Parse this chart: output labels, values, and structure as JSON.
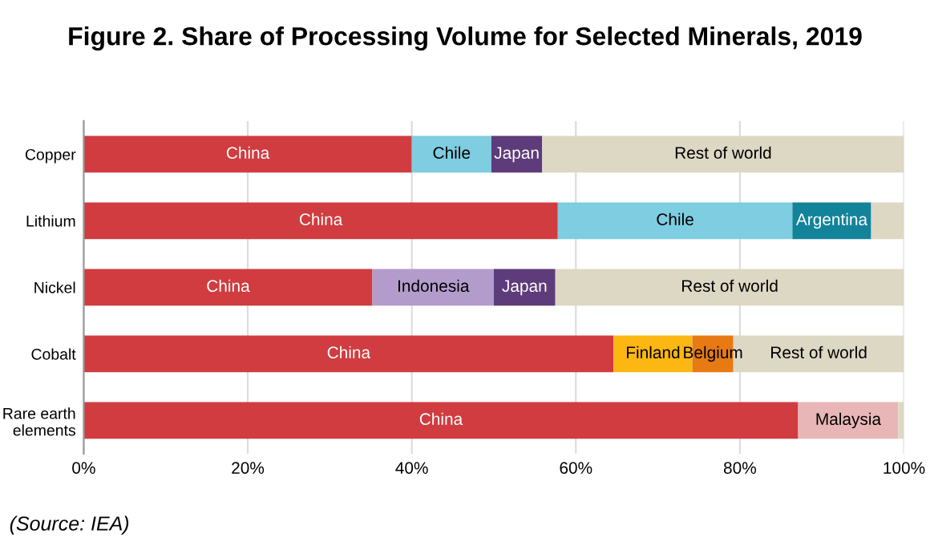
{
  "chart_data": {
    "type": "bar",
    "orientation": "horizontal",
    "stacked": true,
    "title": "Figure 2. Share of Processing Volume for Selected Minerals, 2019",
    "categories": [
      "Copper",
      "Lithium",
      "Nickel",
      "Cobalt",
      "Rare earth\nelements"
    ],
    "series": [
      {
        "colors": [
          "#d03c40",
          "#d03c40",
          "#d03c40",
          "#d03c40",
          "#d03c40"
        ],
        "values": [
          40.0,
          57.8,
          35.2,
          64.6,
          87.1
        ],
        "value_labels": [
          "China",
          "China",
          "China",
          "China",
          "China"
        ]
      },
      {
        "colors": [
          "#7ecde0",
          "#7ecde0",
          "#b39ccb",
          "#fcb712",
          "#e8b6b7"
        ],
        "values": [
          9.7,
          28.6,
          14.8,
          9.6,
          12.2
        ],
        "value_labels": [
          "Chile",
          "Chile",
          "Indonesia",
          "Finland",
          "Malaysia"
        ]
      },
      {
        "colors": [
          "#5e3b7a",
          "#13839a",
          "#5e3b7a",
          "#e77a13",
          null
        ],
        "values": [
          6.2,
          9.6,
          7.5,
          5.0,
          null
        ],
        "value_labels": [
          "Japan",
          "Argentina",
          "Japan",
          "Belgium",
          null
        ]
      },
      {
        "colors": [
          "#ddd8c4",
          "#ddd8c4",
          "#ddd8c4",
          "#ddd8c4",
          "#ddd8c4"
        ],
        "values": [
          44.1,
          4.0,
          42.5,
          20.8,
          0.7
        ],
        "value_labels": [
          "Rest of world",
          null,
          "Rest of world",
          "Rest of world",
          null
        ]
      }
    ],
    "xlim": [
      0,
      100
    ],
    "xticks": [
      {
        "value": 0,
        "label": "0%"
      },
      {
        "value": 20,
        "label": "20%"
      },
      {
        "value": 40,
        "label": "40%"
      },
      {
        "value": 60,
        "label": "60%"
      },
      {
        "value": 80,
        "label": "80%"
      },
      {
        "value": 100,
        "label": "100%"
      }
    ],
    "grid": "x",
    "annotations": [
      "(Source: IEA)"
    ]
  }
}
